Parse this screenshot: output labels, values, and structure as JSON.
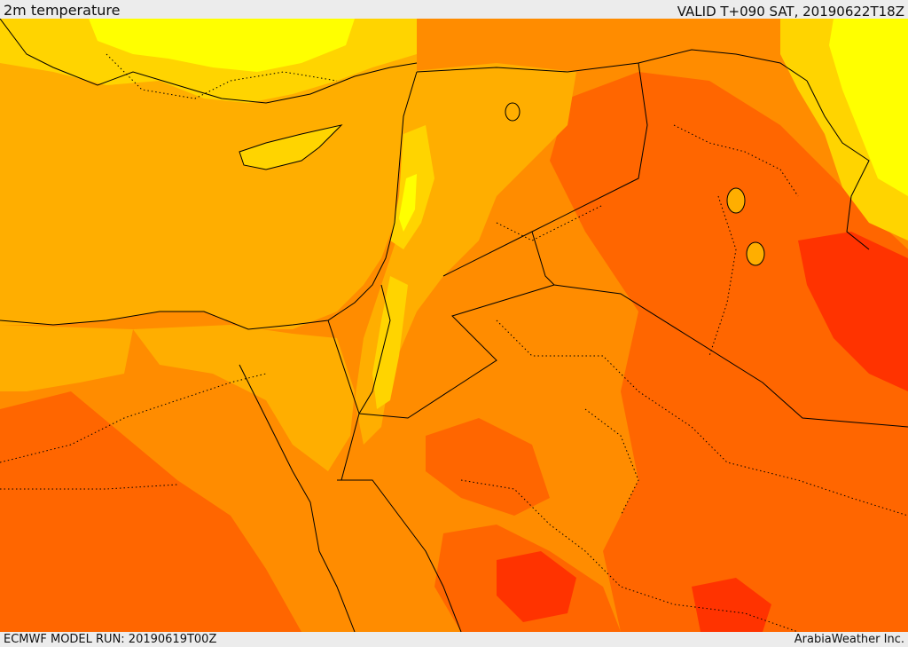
{
  "header": {
    "title": "2m temperature",
    "valid": "VALID T+090 SAT, 20190622T18Z"
  },
  "footer": {
    "model_run": "ECMWF MODEL RUN: 20190619T00Z",
    "credit": "ArabiaWeather Inc."
  },
  "map": {
    "variable": "2m temperature",
    "region": "Eastern Mediterranean and Middle East",
    "palette": {
      "cool": "#ffff00",
      "mild": "#ffd400",
      "warm": "#ffae00",
      "hot": "#ff8c00",
      "very_hot": "#ff6600",
      "extreme": "#ff3300",
      "sea": "#ffae00",
      "border": "#000000"
    }
  }
}
